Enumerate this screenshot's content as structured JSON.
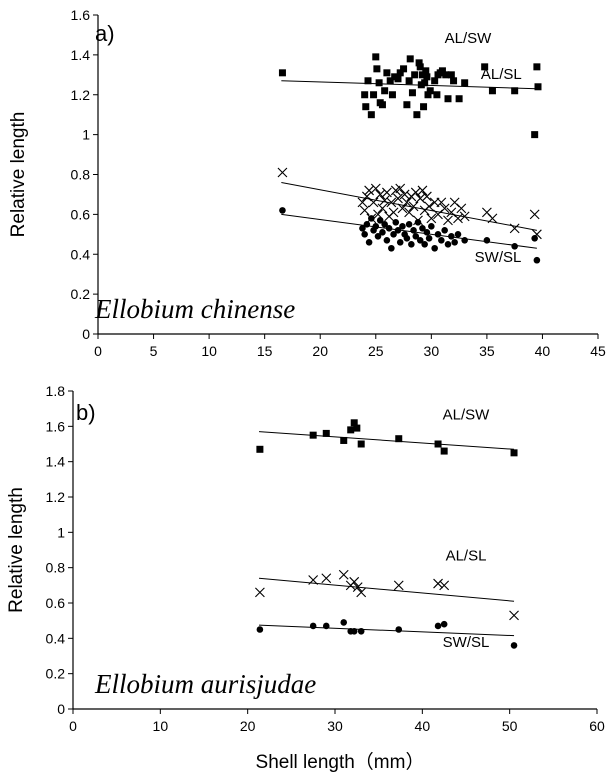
{
  "x_axis_label": "Shell length（mm）",
  "chart_data": [
    {
      "type": "scatter",
      "panel_label": "a)",
      "species": "Ellobium chinense",
      "ylabel": "Relative length",
      "xlim": [
        0,
        45
      ],
      "ylim": [
        0,
        1.6
      ],
      "x_ticks": [
        "0",
        "5",
        "10",
        "15",
        "20",
        "25",
        "30",
        "35",
        "40",
        "45"
      ],
      "y_ticks": [
        "0",
        "0.2",
        "0.4",
        "0.6",
        "0.8",
        "1",
        "1.2",
        "1.4",
        "1.6"
      ],
      "series": [
        {
          "name": "AL/SW",
          "marker": "square",
          "label_pos": [
            33.3,
            1.46
          ],
          "trend": [
            [
              16.5,
              1.27
            ],
            [
              39.5,
              1.23
            ]
          ],
          "points": [
            [
              16.6,
              1.31
            ],
            [
              24.0,
              1.2
            ],
            [
              24.1,
              1.14
            ],
            [
              24.3,
              1.27
            ],
            [
              24.6,
              1.1
            ],
            [
              24.8,
              1.2
            ],
            [
              25.0,
              1.39
            ],
            [
              25.1,
              1.33
            ],
            [
              25.3,
              1.26
            ],
            [
              25.4,
              1.16
            ],
            [
              25.6,
              1.15
            ],
            [
              25.8,
              1.22
            ],
            [
              26.0,
              1.31
            ],
            [
              26.3,
              1.27
            ],
            [
              26.5,
              1.2
            ],
            [
              26.7,
              1.29
            ],
            [
              27.0,
              1.28
            ],
            [
              27.2,
              1.31
            ],
            [
              27.5,
              1.33
            ],
            [
              27.8,
              1.15
            ],
            [
              28.0,
              1.27
            ],
            [
              28.1,
              1.38
            ],
            [
              28.3,
              1.21
            ],
            [
              28.5,
              1.3
            ],
            [
              28.7,
              1.1
            ],
            [
              28.9,
              1.36
            ],
            [
              29.0,
              1.34
            ],
            [
              29.1,
              1.25
            ],
            [
              29.2,
              1.3
            ],
            [
              29.3,
              1.14
            ],
            [
              29.4,
              1.26
            ],
            [
              29.5,
              1.32
            ],
            [
              29.6,
              1.29
            ],
            [
              29.7,
              1.2
            ],
            [
              29.9,
              1.22
            ],
            [
              30.3,
              1.27
            ],
            [
              30.5,
              1.2
            ],
            [
              30.6,
              1.3
            ],
            [
              30.8,
              1.31
            ],
            [
              31.0,
              1.32
            ],
            [
              31.3,
              1.3
            ],
            [
              31.5,
              1.18
            ],
            [
              31.8,
              1.3
            ],
            [
              32.0,
              1.27
            ],
            [
              32.5,
              1.18
            ],
            [
              33.0,
              1.26
            ],
            [
              34.8,
              1.34
            ],
            [
              35.5,
              1.22
            ],
            [
              37.5,
              1.22
            ],
            [
              39.3,
              1.0
            ],
            [
              39.5,
              1.34
            ],
            [
              39.6,
              1.24
            ]
          ]
        },
        {
          "name": "AL/SL",
          "marker": "x",
          "label_pos": [
            36.3,
            1.28
          ],
          "trend": [
            [
              16.5,
              0.76
            ],
            [
              39.5,
              0.52
            ]
          ],
          "points": [
            [
              16.6,
              0.81
            ],
            [
              23.8,
              0.66
            ],
            [
              24.0,
              0.62
            ],
            [
              24.2,
              0.69
            ],
            [
              24.4,
              0.72
            ],
            [
              24.6,
              0.58
            ],
            [
              24.8,
              0.66
            ],
            [
              25.0,
              0.73
            ],
            [
              25.2,
              0.6
            ],
            [
              25.4,
              0.7
            ],
            [
              25.6,
              0.63
            ],
            [
              25.8,
              0.67
            ],
            [
              26.0,
              0.71
            ],
            [
              26.2,
              0.59
            ],
            [
              26.4,
              0.66
            ],
            [
              26.6,
              0.61
            ],
            [
              26.8,
              0.72
            ],
            [
              27.0,
              0.68
            ],
            [
              27.2,
              0.73
            ],
            [
              27.4,
              0.63
            ],
            [
              27.6,
              0.7
            ],
            [
              27.8,
              0.66
            ],
            [
              28.0,
              0.61
            ],
            [
              28.2,
              0.69
            ],
            [
              28.4,
              0.64
            ],
            [
              28.6,
              0.71
            ],
            [
              28.8,
              0.57
            ],
            [
              29.0,
              0.68
            ],
            [
              29.2,
              0.72
            ],
            [
              29.4,
              0.62
            ],
            [
              29.6,
              0.69
            ],
            [
              29.8,
              0.64
            ],
            [
              30.0,
              0.58
            ],
            [
              30.3,
              0.66
            ],
            [
              30.6,
              0.6
            ],
            [
              30.9,
              0.66
            ],
            [
              31.2,
              0.63
            ],
            [
              31.5,
              0.57
            ],
            [
              31.8,
              0.61
            ],
            [
              32.1,
              0.66
            ],
            [
              32.4,
              0.58
            ],
            [
              32.7,
              0.63
            ],
            [
              33.0,
              0.59
            ],
            [
              35.0,
              0.61
            ],
            [
              35.5,
              0.58
            ],
            [
              37.5,
              0.53
            ],
            [
              39.3,
              0.6
            ],
            [
              39.5,
              0.5
            ]
          ]
        },
        {
          "name": "SW/SL",
          "marker": "circle",
          "label_pos": [
            36.0,
            0.36
          ],
          "trend": [
            [
              16.5,
              0.6
            ],
            [
              39.5,
              0.43
            ]
          ],
          "points": [
            [
              16.6,
              0.62
            ],
            [
              23.8,
              0.53
            ],
            [
              24.0,
              0.5
            ],
            [
              24.2,
              0.55
            ],
            [
              24.4,
              0.46
            ],
            [
              24.6,
              0.58
            ],
            [
              24.8,
              0.52
            ],
            [
              25.0,
              0.54
            ],
            [
              25.2,
              0.49
            ],
            [
              25.4,
              0.57
            ],
            [
              25.6,
              0.51
            ],
            [
              25.8,
              0.55
            ],
            [
              26.0,
              0.47
            ],
            [
              26.2,
              0.53
            ],
            [
              26.4,
              0.43
            ],
            [
              26.6,
              0.5
            ],
            [
              26.8,
              0.56
            ],
            [
              27.0,
              0.52
            ],
            [
              27.2,
              0.46
            ],
            [
              27.4,
              0.54
            ],
            [
              27.6,
              0.5
            ],
            [
              27.8,
              0.48
            ],
            [
              28.0,
              0.55
            ],
            [
              28.2,
              0.45
            ],
            [
              28.4,
              0.52
            ],
            [
              28.6,
              0.49
            ],
            [
              28.8,
              0.56
            ],
            [
              29.0,
              0.47
            ],
            [
              29.2,
              0.53
            ],
            [
              29.4,
              0.45
            ],
            [
              29.6,
              0.51
            ],
            [
              29.8,
              0.48
            ],
            [
              30.0,
              0.54
            ],
            [
              30.3,
              0.43
            ],
            [
              30.6,
              0.5
            ],
            [
              30.9,
              0.47
            ],
            [
              31.2,
              0.52
            ],
            [
              31.5,
              0.45
            ],
            [
              31.8,
              0.49
            ],
            [
              32.1,
              0.46
            ],
            [
              32.4,
              0.5
            ],
            [
              33.0,
              0.47
            ],
            [
              35.0,
              0.47
            ],
            [
              37.5,
              0.44
            ],
            [
              39.3,
              0.48
            ],
            [
              39.5,
              0.37
            ]
          ]
        }
      ]
    },
    {
      "type": "scatter",
      "panel_label": "b)",
      "species": "Ellobium aurisjudae",
      "ylabel": "Relative length",
      "xlim": [
        0,
        60
      ],
      "ylim": [
        0,
        1.8
      ],
      "x_ticks": [
        "0",
        "10",
        "20",
        "30",
        "40",
        "50",
        "60"
      ],
      "y_ticks": [
        "0",
        "0.2",
        "0.4",
        "0.6",
        "0.8",
        "1",
        "1.2",
        "1.4",
        "1.6",
        "1.8"
      ],
      "series": [
        {
          "name": "AL/SW",
          "marker": "square",
          "label_pos": [
            45.0,
            1.64
          ],
          "trend": [
            [
              21.3,
              1.57
            ],
            [
              50.5,
              1.47
            ]
          ],
          "points": [
            [
              21.4,
              1.47
            ],
            [
              27.5,
              1.55
            ],
            [
              29.0,
              1.56
            ],
            [
              31.0,
              1.52
            ],
            [
              31.8,
              1.58
            ],
            [
              32.2,
              1.62
            ],
            [
              32.5,
              1.59
            ],
            [
              33.0,
              1.5
            ],
            [
              37.3,
              1.53
            ],
            [
              41.8,
              1.5
            ],
            [
              42.5,
              1.46
            ],
            [
              50.5,
              1.45
            ]
          ]
        },
        {
          "name": "AL/SL",
          "marker": "x",
          "label_pos": [
            45.0,
            0.84
          ],
          "trend": [
            [
              21.3,
              0.74
            ],
            [
              50.5,
              0.61
            ]
          ],
          "points": [
            [
              21.4,
              0.66
            ],
            [
              27.5,
              0.73
            ],
            [
              29.0,
              0.74
            ],
            [
              31.0,
              0.76
            ],
            [
              31.8,
              0.7
            ],
            [
              32.2,
              0.72
            ],
            [
              32.6,
              0.69
            ],
            [
              33.0,
              0.66
            ],
            [
              37.3,
              0.7
            ],
            [
              41.8,
              0.71
            ],
            [
              42.5,
              0.7
            ],
            [
              50.5,
              0.53
            ]
          ]
        },
        {
          "name": "SW/SL",
          "marker": "circle",
          "label_pos": [
            45.0,
            0.35
          ],
          "trend": [
            [
              21.3,
              0.475
            ],
            [
              50.5,
              0.415
            ]
          ],
          "points": [
            [
              21.4,
              0.45
            ],
            [
              27.5,
              0.47
            ],
            [
              29.0,
              0.47
            ],
            [
              31.0,
              0.49
            ],
            [
              31.8,
              0.44
            ],
            [
              32.2,
              0.44
            ],
            [
              33.0,
              0.44
            ],
            [
              37.3,
              0.45
            ],
            [
              41.8,
              0.47
            ],
            [
              42.5,
              0.48
            ],
            [
              50.5,
              0.36
            ]
          ]
        }
      ]
    }
  ]
}
